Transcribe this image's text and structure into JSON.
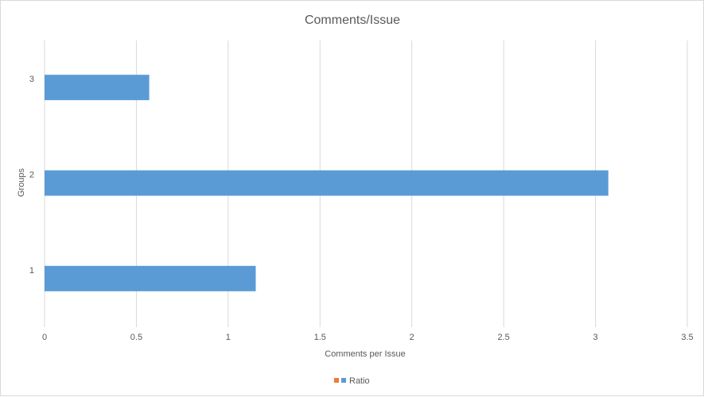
{
  "chart_data": {
    "type": "bar",
    "orientation": "horizontal",
    "title": "Comments/Issue",
    "xlabel": "Comments per Issue",
    "ylabel": "Groups",
    "categories": [
      "1",
      "2",
      "3"
    ],
    "series": [
      {
        "name": "",
        "color": "#ed7d31",
        "values": [
          null,
          null,
          null
        ]
      },
      {
        "name": "Ratio",
        "color": "#5b9bd5",
        "values": [
          1.15,
          3.07,
          0.57
        ]
      }
    ],
    "xlim": [
      0,
      3.5
    ],
    "xticks": [
      "0",
      "0.5",
      "1",
      "1.5",
      "2",
      "2.5",
      "3",
      "3.5"
    ],
    "grid": true,
    "legend_position": "bottom"
  }
}
